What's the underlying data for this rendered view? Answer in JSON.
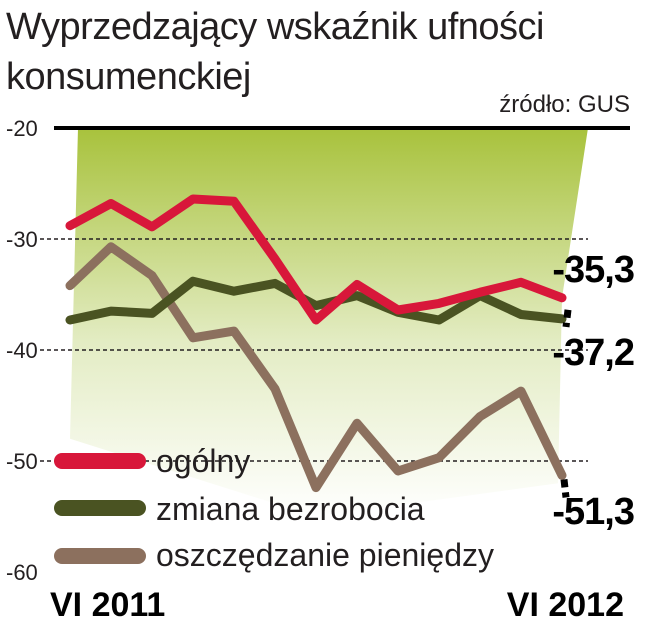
{
  "chart_data": {
    "type": "line",
    "title": "Wyprzedzający wskaźnik ufności konsumenckiej",
    "source": "źródło: GUS",
    "ylim": [
      -60,
      -20
    ],
    "yticks": [
      "-20",
      "-30",
      "-40",
      "-50",
      "-60"
    ],
    "x_start_label": "VI 2011",
    "x_end_label": "VI 2012",
    "grid": "dashed",
    "legend_position": "bottom-left",
    "series": [
      {
        "name": "ogólny",
        "color": "#d8173a",
        "values": [
          -28.8,
          -26.8,
          -28.9,
          -26.4,
          -26.6,
          -31.8,
          -37.3,
          -34.1,
          -36.4,
          -35.8,
          -34.8,
          -33.9,
          -35.3
        ],
        "end_label": "-35,3"
      },
      {
        "name": "zmiana bezrobocia",
        "color": "#4a5322",
        "values": [
          -37.3,
          -36.5,
          -36.7,
          -33.8,
          -34.7,
          -34.0,
          -36.0,
          -35.1,
          -36.6,
          -37.3,
          -35.1,
          -36.8,
          -37.2
        ],
        "end_label": "-37,2"
      },
      {
        "name": "oszczędzanie pieniędzy",
        "color": "#8c705e",
        "values": [
          -34.2,
          -30.7,
          -33.3,
          -38.9,
          -38.3,
          -43.5,
          -52.4,
          -46.6,
          -50.9,
          -49.7,
          -46.0,
          -43.7,
          -51.3
        ],
        "end_label": "-51,3"
      }
    ]
  }
}
